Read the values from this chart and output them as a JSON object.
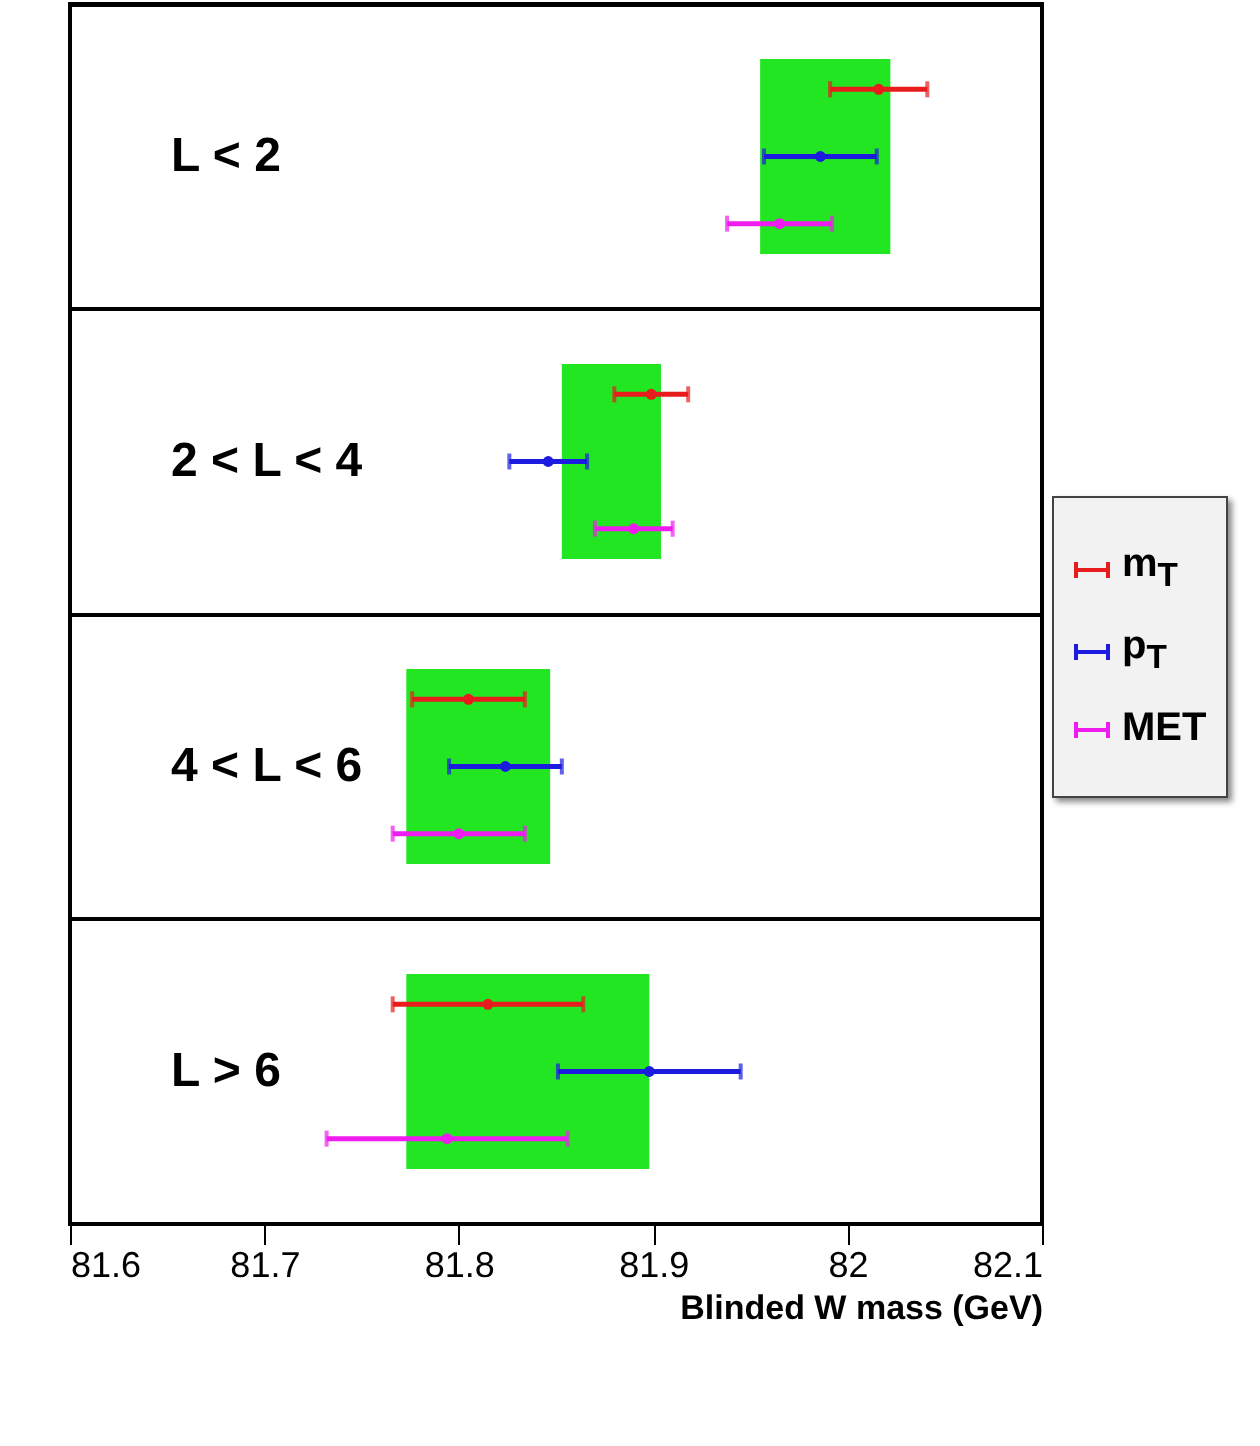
{
  "chart_data": {
    "type": "bar",
    "orientation": "horizontal",
    "xlabel": "Blinded W mass (GeV)",
    "categories": [
      "L < 2",
      "2 < L < 4",
      "4 < L < 6",
      "L > 6"
    ],
    "xlim": [
      81.6,
      82.1
    ],
    "xticks": [
      81.6,
      81.7,
      81.8,
      81.9,
      82,
      82.1
    ],
    "grid": "y",
    "legend": "right",
    "marker": "circle",
    "series": [
      {
        "type": "bar",
        "color": "#22e622",
        "base": [
          81.955,
          81.853,
          81.773,
          81.773
        ],
        "values": [
          0.067,
          0.051,
          0.074,
          0.125
        ]
      },
      {
        "type": "scatter",
        "name": "m$_{T}$",
        "color": "#e81c1c",
        "values": [
          82.016,
          81.899,
          81.805,
          81.815
        ],
        "errors": [
          0.025,
          0.019,
          0.029,
          0.049
        ]
      },
      {
        "type": "scatter",
        "name": "p$_{T}$",
        "color": "#1c1ce0",
        "values": [
          81.986,
          81.846,
          81.824,
          81.898
        ],
        "errors": [
          0.029,
          0.02,
          0.029,
          0.047
        ]
      },
      {
        "type": "scatter",
        "name": "MET",
        "color": "#ee1cee",
        "values": [
          81.965,
          81.89,
          81.8,
          81.794
        ],
        "errors": [
          0.027,
          0.02,
          0.034,
          0.062
        ]
      }
    ]
  }
}
